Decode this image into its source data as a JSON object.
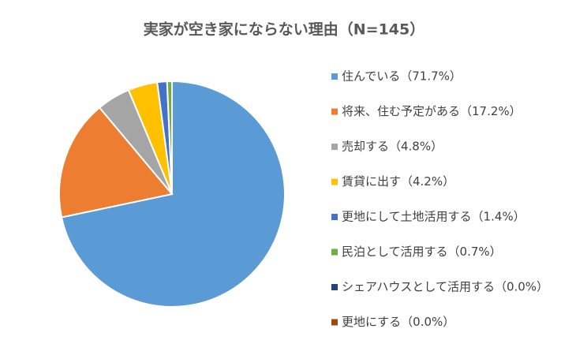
{
  "chart_data": {
    "type": "pie",
    "title": "実家が空き家にならない理由（N=145）",
    "categories": [
      "住んでいる（71.7%）",
      "将来、住む予定がある（17.2%）",
      "売却する（4.8%）",
      "賃貸に出す（4.2%）",
      "更地にして土地活用する（1.4%）",
      "民泊として活用する（0.7%）",
      "シェアハウスとして活用する（0.0%）",
      "更地にする（0.0%）"
    ],
    "values": [
      71.7,
      17.2,
      4.8,
      4.2,
      1.4,
      0.7,
      0.0,
      0.0
    ],
    "colors": [
      "#5b9bd5",
      "#ed7d31",
      "#a5a5a5",
      "#ffc000",
      "#4472c4",
      "#70ad47",
      "#264478",
      "#9e480e"
    ],
    "legend": "right"
  }
}
